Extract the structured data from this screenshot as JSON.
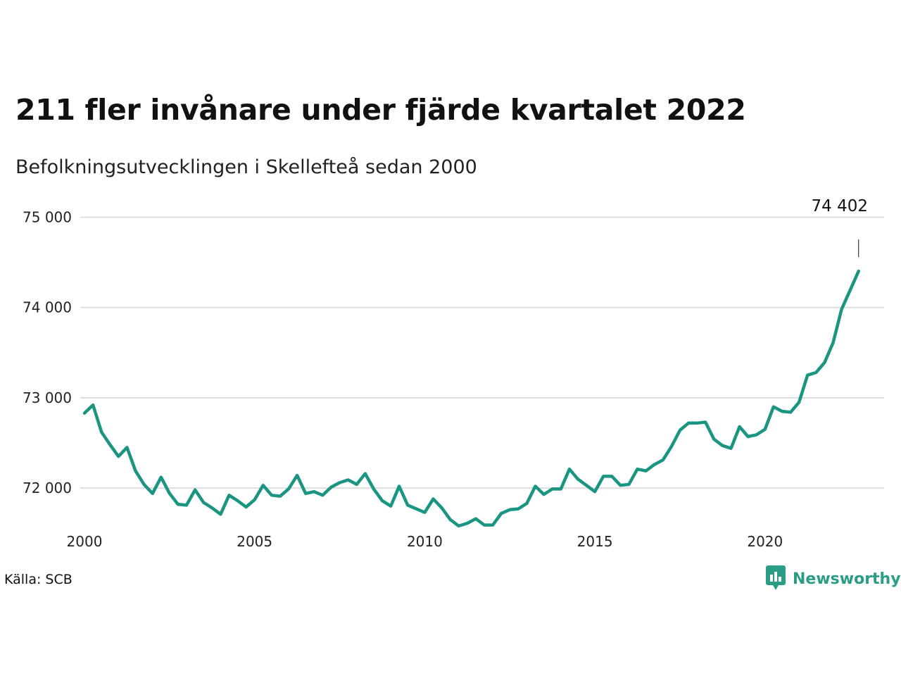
{
  "header": {
    "title": "211 fler invånare under fjärde kvartalet 2022",
    "subtitle": "Befolkningsutvecklingen i Skellefteå sedan 2000"
  },
  "footer": {
    "source": "Källa: SCB",
    "brand": "Newsworthy",
    "brand_icon": "newsworthy-logo-icon"
  },
  "colors": {
    "line": "#1a9582",
    "grid": "#dddddd",
    "brand": "#2a9d86"
  },
  "chart_data": {
    "type": "line",
    "title": "211 fler invånare under fjärde kvartalet 2022",
    "subtitle": "Befolkningsutvecklingen i Skellefteå sedan 2000",
    "x_unit": "quarter",
    "x_start": "2000 Q1",
    "x_end": "2022 Q4",
    "xlim": [
      2000,
      2023.5
    ],
    "ylim": [
      71400,
      75300
    ],
    "x_ticks": [
      2000,
      2005,
      2010,
      2015,
      2020
    ],
    "x_tick_labels": [
      "2000",
      "2005",
      "2010",
      "2015",
      "2020"
    ],
    "y_ticks": [
      72000,
      73000,
      74000,
      75000
    ],
    "y_tick_labels": [
      "72 000",
      "73 000",
      "74 000",
      "75 000"
    ],
    "grid": "horizontal",
    "legend": "none",
    "end_label": "74 402",
    "series": [
      {
        "values": [
          72830,
          72920,
          72620,
          72480,
          72350,
          72450,
          72190,
          72040,
          71940,
          72120,
          71940,
          71820,
          71810,
          71980,
          71840,
          71780,
          71710,
          71920,
          71860,
          71790,
          71870,
          72030,
          71920,
          71910,
          71990,
          72140,
          71940,
          71960,
          71920,
          72010,
          72060,
          72090,
          72040,
          72160,
          71990,
          71860,
          71800,
          72020,
          71810,
          71770,
          71730,
          71880,
          71780,
          71650,
          71580,
          71610,
          71660,
          71590,
          71590,
          71720,
          71760,
          71770,
          71830,
          72020,
          71930,
          71990,
          71990,
          72210,
          72100,
          72030,
          71960,
          72130,
          72130,
          72030,
          72040,
          72210,
          72190,
          72260,
          72310,
          72460,
          72640,
          72720,
          72720,
          72730,
          72540,
          72470,
          72440,
          72680,
          72570,
          72590,
          72650,
          72900,
          72850,
          72840,
          72950,
          73250,
          73280,
          73390,
          73610,
          73980,
          74191,
          74402
        ]
      }
    ]
  }
}
